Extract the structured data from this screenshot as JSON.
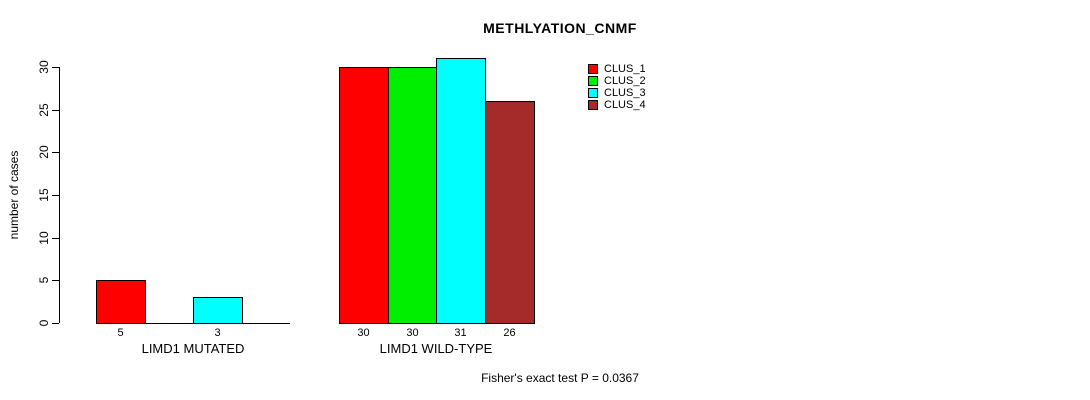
{
  "chart_data": {
    "type": "bar",
    "title": "METHLYATION_CNMF",
    "ylabel": "number of cases",
    "ylim": [
      0,
      30
    ],
    "yticks": [
      0,
      5,
      10,
      15,
      20,
      25,
      30
    ],
    "grid": false,
    "legend_position": "top-right",
    "annotation": "Fisher's exact test P = 0.0367",
    "groups": [
      {
        "label": "LIMD1 MUTATED"
      },
      {
        "label": "LIMD1 WILD-TYPE"
      }
    ],
    "series": [
      {
        "name": "CLUS_1",
        "color": "#ff0000",
        "values": [
          5,
          30
        ]
      },
      {
        "name": "CLUS_2",
        "color": "#00ee00",
        "values": [
          0,
          30
        ]
      },
      {
        "name": "CLUS_3",
        "color": "#00ffff",
        "values": [
          3,
          31
        ]
      },
      {
        "name": "CLUS_4",
        "color": "#a52a2a",
        "values": [
          0,
          26
        ]
      }
    ],
    "colors": {
      "axis": "#000000",
      "text": "#000000",
      "background": "#ffffff"
    }
  }
}
